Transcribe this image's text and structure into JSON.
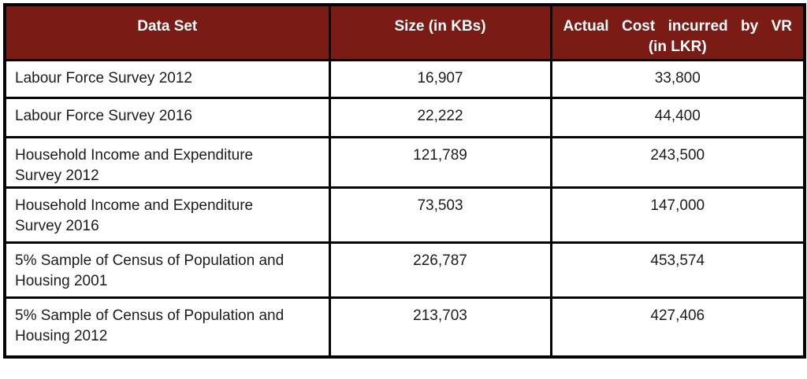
{
  "table": {
    "colors": {
      "header_bg": "#7a1b16",
      "header_text": "#ffffff",
      "body_text": "#1c1c1c",
      "border": "#050505",
      "row_bg": "#ffffff"
    },
    "columns": [
      {
        "label": "Data Set"
      },
      {
        "label": "Size (in KBs)"
      },
      {
        "label": "Actual Cost incurred by VR",
        "label_line2": "(in LKR)"
      }
    ],
    "rows": [
      {
        "dataset": "Labour Force Survey 2012",
        "size_kb": "16,907",
        "cost_lkr": "33,800"
      },
      {
        "dataset": "Labour Force Survey 2016",
        "size_kb": "22,222",
        "cost_lkr": "44,400"
      },
      {
        "dataset": "Household Income and Expenditure\nSurvey 2012",
        "size_kb": "121,789",
        "cost_lkr": "243,500"
      },
      {
        "dataset": "Household Income and Expenditure\nSurvey 2016",
        "size_kb": "73,503",
        "cost_lkr": "147,000"
      },
      {
        "dataset": "5% Sample of Census of Population and\nHousing 2001",
        "size_kb": "226,787",
        "cost_lkr": "453,574"
      },
      {
        "dataset": "5% Sample of Census of Population and\nHousing 2012",
        "size_kb": "213,703",
        "cost_lkr": "427,406"
      }
    ]
  },
  "chart_data": {
    "type": "table",
    "columns": [
      "Data Set",
      "Size (in KBs)",
      "Actual Cost incurred by VR (in LKR)"
    ],
    "rows": [
      [
        "Labour Force Survey 2012",
        16907,
        33800
      ],
      [
        "Labour Force Survey 2016",
        22222,
        44400
      ],
      [
        "Household Income and Expenditure Survey 2012",
        121789,
        243500
      ],
      [
        "Household Income and Expenditure Survey 2016",
        73503,
        147000
      ],
      [
        "5% Sample of Census of Population and Housing 2001",
        226787,
        453574
      ],
      [
        "5% Sample of Census of Population and Housing 2012",
        213703,
        427406
      ]
    ]
  }
}
